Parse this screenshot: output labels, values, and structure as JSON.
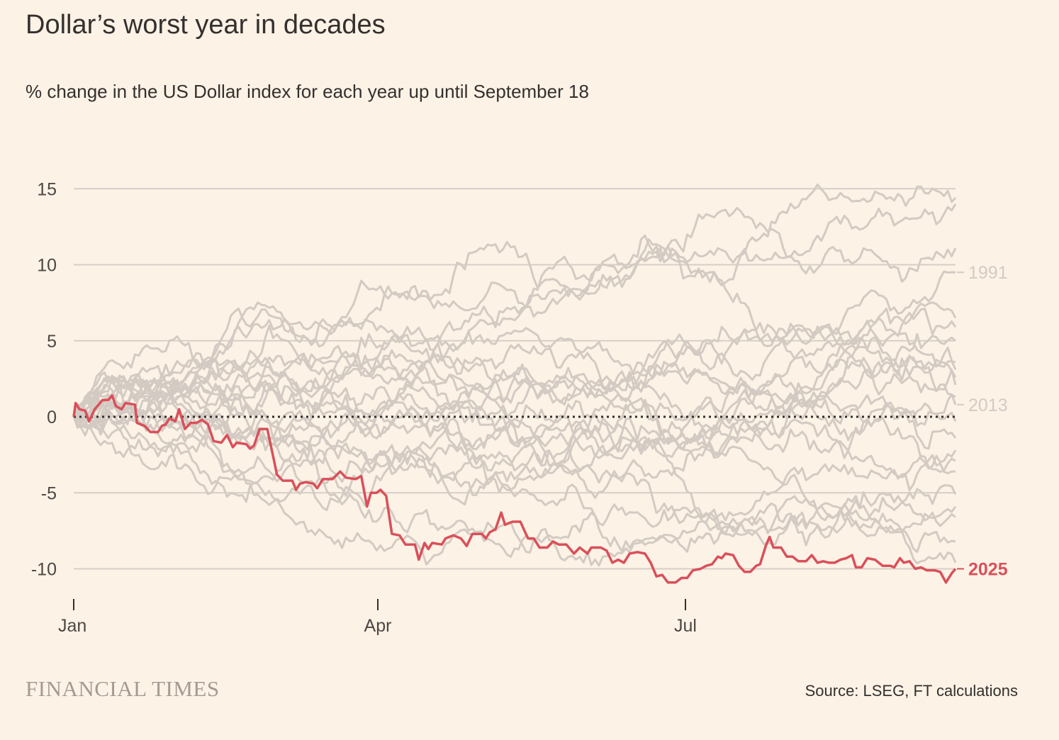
{
  "title": "Dollar’s worst year in decades",
  "subtitle": "% change in the US Dollar index for each year up until September 18",
  "footer": {
    "brand": "FINANCIAL TIMES",
    "source": "Source: LSEG, FT calculations"
  },
  "colors": {
    "background": "#fdf2e6",
    "highlight": "#d9505a",
    "other_years": "#d3cbc3",
    "gridline": "#d6cfc7",
    "zero_line": "#33302e"
  },
  "chart_data": {
    "type": "line",
    "title": "Dollar’s worst year in decades",
    "subtitle": "% change in the US Dollar index for each year up until September 18",
    "xlabel": "",
    "ylabel": "% change",
    "x_range": [
      "Jan 1",
      "Sep 18"
    ],
    "x_ticks": [
      "Jan",
      "Apr",
      "Jul"
    ],
    "y_ticks": [
      15,
      10,
      5,
      0,
      -5,
      -10
    ],
    "ylim": [
      -12,
      17
    ],
    "grid": true,
    "zero_line": "dotted",
    "highlight_series": {
      "name": "2025",
      "points": [
        [
          0,
          0
        ],
        [
          1,
          0.9
        ],
        [
          3,
          0.5
        ],
        [
          6,
          0.4
        ],
        [
          8,
          -0.3
        ],
        [
          11,
          0.5
        ],
        [
          15,
          1.1
        ],
        [
          18,
          1.1
        ],
        [
          20,
          1.4
        ],
        [
          22,
          0.7
        ],
        [
          25,
          0.5
        ],
        [
          27,
          0.9
        ],
        [
          32,
          0.8
        ],
        [
          33,
          -0.4
        ],
        [
          37,
          -0.6
        ],
        [
          40,
          -1.0
        ],
        [
          44,
          -1.0
        ],
        [
          46,
          -0.6
        ],
        [
          48,
          -0.5
        ],
        [
          50,
          -0.1
        ],
        [
          53,
          -0.3
        ],
        [
          55,
          0.5
        ],
        [
          58,
          -0.8
        ],
        [
          61,
          -0.4
        ],
        [
          64,
          -0.4
        ],
        [
          67,
          -0.2
        ],
        [
          70,
          -0.5
        ],
        [
          73,
          -1.6
        ],
        [
          77,
          -1.7
        ],
        [
          80,
          -1.2
        ],
        [
          83,
          -2.0
        ],
        [
          85,
          -1.7
        ],
        [
          90,
          -1.8
        ],
        [
          92,
          -2.1
        ],
        [
          94,
          -1.9
        ],
        [
          97,
          -0.8
        ],
        [
          101,
          -0.8
        ],
        [
          104,
          -2.6
        ],
        [
          106,
          -3.8
        ],
        [
          109,
          -4.2
        ],
        [
          114,
          -4.2
        ],
        [
          116,
          -4.8
        ],
        [
          118,
          -4.4
        ],
        [
          121,
          -4.3
        ],
        [
          125,
          -4.4
        ],
        [
          127,
          -4.7
        ],
        [
          130,
          -4.1
        ],
        [
          135,
          -4.1
        ],
        [
          139,
          -3.6
        ],
        [
          142,
          -4.0
        ],
        [
          147,
          -4.1
        ],
        [
          150,
          -3.9
        ],
        [
          153,
          -5.9
        ],
        [
          155,
          -5.0
        ],
        [
          158,
          -5.0
        ],
        [
          160,
          -4.8
        ],
        [
          163,
          -5.2
        ],
        [
          166,
          -7.7
        ],
        [
          170,
          -7.8
        ],
        [
          173,
          -8.4
        ],
        [
          178,
          -8.4
        ],
        [
          180,
          -9.4
        ],
        [
          183,
          -8.3
        ],
        [
          185,
          -8.7
        ],
        [
          187,
          -8.3
        ],
        [
          192,
          -8.4
        ],
        [
          194,
          -8.0
        ],
        [
          198,
          -7.8
        ],
        [
          202,
          -8.0
        ],
        [
          205,
          -8.5
        ],
        [
          208,
          -7.7
        ],
        [
          213,
          -7.7
        ],
        [
          215,
          -8.0
        ],
        [
          217,
          -7.6
        ],
        [
          220,
          -7.4
        ],
        [
          223,
          -6.3
        ],
        [
          225,
          -7.1
        ],
        [
          229,
          -6.9
        ],
        [
          233,
          -6.9
        ],
        [
          237,
          -8.0
        ],
        [
          240,
          -8.0
        ],
        [
          243,
          -8.6
        ],
        [
          247,
          -8.6
        ],
        [
          250,
          -8.2
        ],
        [
          253,
          -8.4
        ],
        [
          257,
          -8.4
        ],
        [
          261,
          -9.0
        ],
        [
          264,
          -8.6
        ],
        [
          268,
          -9.0
        ],
        [
          270,
          -8.6
        ],
        [
          275,
          -8.6
        ],
        [
          278,
          -8.8
        ],
        [
          281,
          -9.6
        ],
        [
          284,
          -9.4
        ],
        [
          287,
          -9.6
        ],
        [
          290,
          -9.0
        ],
        [
          294,
          -8.9
        ],
        [
          298,
          -9.0
        ],
        [
          301,
          -9.6
        ],
        [
          304,
          -10.5
        ],
        [
          307,
          -10.4
        ],
        [
          310,
          -10.9
        ],
        [
          314,
          -10.9
        ],
        [
          317,
          -10.6
        ],
        [
          320,
          -10.6
        ],
        [
          323,
          -10.1
        ],
        [
          327,
          -10.0
        ],
        [
          330,
          -9.8
        ],
        [
          333,
          -9.7
        ],
        [
          336,
          -9.2
        ],
        [
          338,
          -9.3
        ],
        [
          340,
          -9.0
        ],
        [
          344,
          -9.1
        ],
        [
          347,
          -9.8
        ],
        [
          350,
          -10.2
        ],
        [
          353,
          -10.2
        ],
        [
          356,
          -9.8
        ],
        [
          358,
          -9.7
        ],
        [
          361,
          -8.5
        ],
        [
          363,
          -7.9
        ],
        [
          365,
          -8.6
        ],
        [
          369,
          -8.6
        ],
        [
          372,
          -9.2
        ],
        [
          375,
          -9.2
        ],
        [
          378,
          -9.5
        ],
        [
          382,
          -9.5
        ],
        [
          385,
          -9.1
        ],
        [
          388,
          -9.6
        ],
        [
          391,
          -9.5
        ],
        [
          394,
          -9.6
        ],
        [
          397,
          -9.6
        ],
        [
          400,
          -9.4
        ],
        [
          403,
          -9.3
        ],
        [
          406,
          -9.1
        ],
        [
          408,
          -9.9
        ],
        [
          411,
          -9.9
        ],
        [
          414,
          -9.3
        ],
        [
          418,
          -9.4
        ],
        [
          422,
          -9.8
        ],
        [
          426,
          -9.8
        ],
        [
          428,
          -9.9
        ],
        [
          431,
          -9.3
        ],
        [
          433,
          -9.6
        ],
        [
          436,
          -9.5
        ],
        [
          439,
          -10.0
        ],
        [
          442,
          -9.9
        ],
        [
          445,
          -10.1
        ],
        [
          449,
          -10.1
        ],
        [
          452,
          -10.2
        ],
        [
          455,
          -10.9
        ],
        [
          458,
          -10.3
        ],
        [
          460,
          -10.0
        ]
      ],
      "end_value": -10.0
    },
    "labelled_series": [
      {
        "name": "1991",
        "end_value": 9.5
      },
      {
        "name": "2013",
        "end_value": 0.8
      }
    ],
    "other_years_end_values": [
      14.4,
      14.0,
      11.1,
      9.5,
      6.5,
      5.9,
      5.0,
      3.6,
      3.1,
      2.6,
      2.1,
      1.3,
      0.8,
      -0.3,
      -1.4,
      -2.2,
      -2.9,
      -3.6,
      -5.1,
      -5.9,
      -6.6,
      -8.2,
      -9.6
    ]
  }
}
